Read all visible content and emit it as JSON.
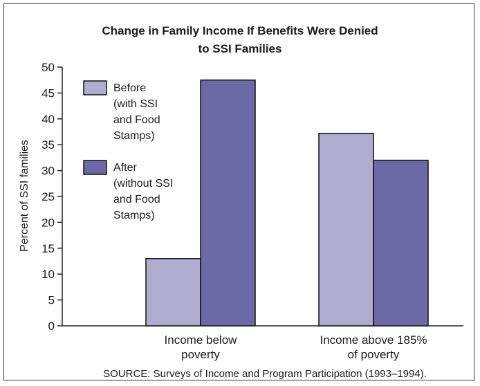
{
  "chart_data": {
    "type": "bar",
    "title": "Change in Family Income If Benefits Were Denied to SSI Families",
    "title_lines": [
      "Change in Family Income If Benefits Were Denied",
      "to SSI Families"
    ],
    "ylabel": "Percent of SSI families",
    "xlabel": "",
    "ylim": [
      0,
      50
    ],
    "yticks": [
      0,
      5,
      10,
      15,
      20,
      25,
      30,
      35,
      40,
      45,
      50
    ],
    "categories": [
      "Income below poverty",
      "Income above 185% of poverty"
    ],
    "category_lines": [
      [
        "Income below",
        "poverty"
      ],
      [
        "Income above 185%",
        "of poverty"
      ]
    ],
    "series": [
      {
        "name": "Before (with SSI and Food Stamps)",
        "name_lines": [
          "Before",
          "(with SSI",
          "and Food",
          "Stamps)"
        ],
        "color": "#aeadd0",
        "values": [
          13,
          37.2
        ]
      },
      {
        "name": "After (without SSI and Food Stamps)",
        "name_lines": [
          "After",
          "(without SSI",
          "and Food",
          "Stamps)"
        ],
        "color": "#6b6aa6",
        "values": [
          47.5,
          32
        ]
      }
    ],
    "legend_position": "top-left",
    "grid": false,
    "source": "SOURCE:  Surveys of Income and Program Participation (1993–1994)."
  }
}
